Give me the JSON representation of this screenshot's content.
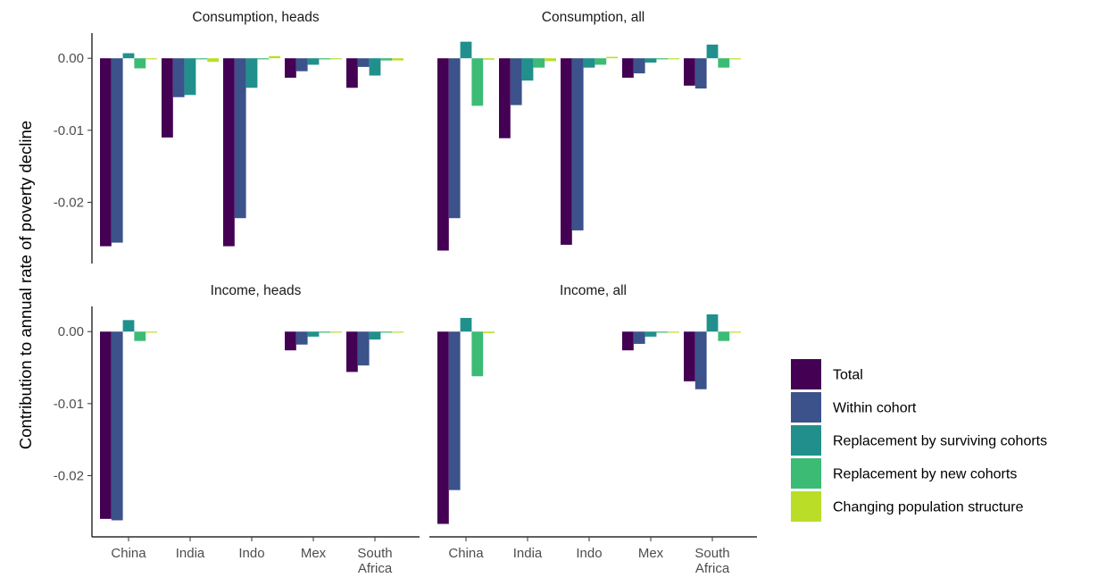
{
  "chart_data": {
    "type": "bar",
    "ylabel": "Contribution to annual rate of poverty decline",
    "xlabel": "",
    "categories": [
      "China",
      "India",
      "Indo",
      "Mex",
      "South Africa"
    ],
    "category_labels": [
      [
        "China"
      ],
      [
        "India"
      ],
      [
        "Indo"
      ],
      [
        "Mex"
      ],
      [
        "South",
        "Africa"
      ]
    ],
    "yticks": [
      "0.00",
      "-0.01",
      "-0.02"
    ],
    "ytick_values": [
      0.0,
      -0.01,
      -0.02
    ],
    "ylim": [
      -0.0285,
      0.0035
    ],
    "grid": false,
    "legend_position": "right",
    "series": [
      {
        "name": "Total",
        "color": "#440154"
      },
      {
        "name": "Within cohort",
        "color": "#3B528B"
      },
      {
        "name": "Replacement by surviving cohorts",
        "color": "#21908C"
      },
      {
        "name": "Replacement by new cohorts",
        "color": "#3CBB75"
      },
      {
        "name": "Changing population structure",
        "color": "#BADE28"
      }
    ],
    "panels": [
      {
        "title": "Consumption, heads",
        "values": [
          [
            -0.0261,
            -0.0256,
            0.0007,
            -0.0014,
            -0.0001
          ],
          [
            -0.011,
            -0.0054,
            -0.0051,
            0.0,
            -0.0005
          ],
          [
            -0.0261,
            -0.0222,
            -0.0041,
            0.0,
            0.0003
          ],
          [
            -0.0027,
            -0.0018,
            -0.0009,
            -0.0001,
            -0.0001
          ],
          [
            -0.0041,
            -0.0012,
            -0.0024,
            -0.0003,
            -0.0003
          ]
        ]
      },
      {
        "title": "Consumption, all",
        "values": [
          [
            -0.0267,
            -0.0222,
            0.0023,
            -0.0066,
            -0.0002
          ],
          [
            -0.0111,
            -0.0065,
            -0.0031,
            -0.0013,
            -0.0004
          ],
          [
            -0.0259,
            -0.0239,
            -0.0013,
            -0.0009,
            0.0002
          ],
          [
            -0.0027,
            -0.0021,
            -0.0006,
            -0.0001,
            -0.0001
          ],
          [
            -0.0038,
            -0.0042,
            0.0019,
            -0.0013,
            -0.0001
          ]
        ]
      },
      {
        "title": "Income, heads",
        "values": [
          [
            -0.026,
            -0.0262,
            0.0016,
            -0.0013,
            -0.0001
          ],
          [
            null,
            null,
            null,
            null,
            null
          ],
          [
            null,
            null,
            null,
            null,
            null
          ],
          [
            -0.0026,
            -0.0018,
            -0.0007,
            -0.0001,
            -0.0001
          ],
          [
            -0.0056,
            -0.0047,
            -0.0011,
            -0.0001,
            -0.0001
          ]
        ]
      },
      {
        "title": "Income, all",
        "values": [
          [
            -0.0267,
            -0.022,
            0.0019,
            -0.0062,
            -0.0002
          ],
          [
            null,
            null,
            null,
            null,
            null
          ],
          [
            null,
            null,
            null,
            null,
            null
          ],
          [
            -0.0026,
            -0.0017,
            -0.0007,
            -0.0001,
            -0.0001
          ],
          [
            -0.0069,
            -0.008,
            0.0024,
            -0.0013,
            -0.0001
          ]
        ]
      }
    ]
  }
}
